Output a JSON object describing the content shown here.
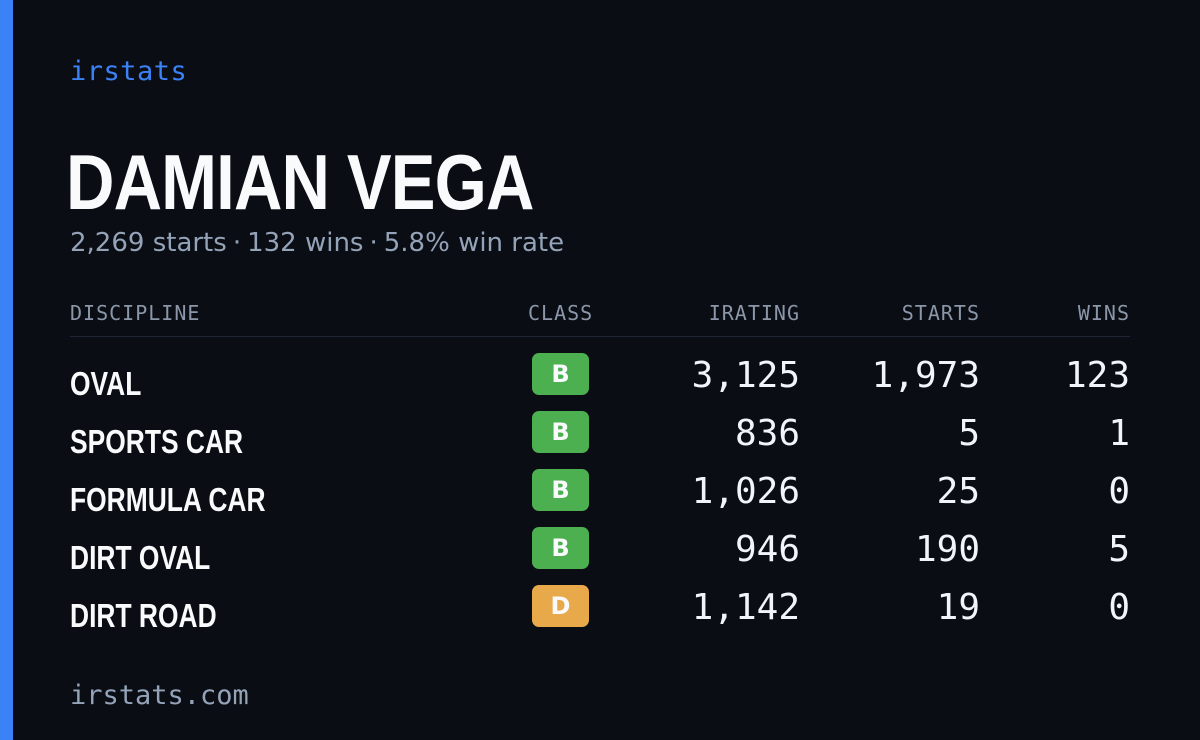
{
  "brand": "irstats",
  "driver": {
    "name": "DAMIAN VEGA",
    "starts_text": "2,269 starts",
    "wins_text": "132 wins",
    "win_rate_text": "5.8% win rate",
    "separator": "·"
  },
  "table": {
    "headers": {
      "discipline": "DISCIPLINE",
      "class": "CLASS",
      "irating": "IRATING",
      "starts": "STARTS",
      "wins": "WINS"
    },
    "rows": [
      {
        "discipline": "OVAL",
        "class": "B",
        "irating": "3,125",
        "starts": "1,973",
        "wins": "123"
      },
      {
        "discipline": "SPORTS CAR",
        "class": "B",
        "irating": "836",
        "starts": "5",
        "wins": "1"
      },
      {
        "discipline": "FORMULA CAR",
        "class": "B",
        "irating": "1,026",
        "starts": "25",
        "wins": "0"
      },
      {
        "discipline": "DIRT OVAL",
        "class": "B",
        "irating": "946",
        "starts": "190",
        "wins": "5"
      },
      {
        "discipline": "DIRT ROAD",
        "class": "D",
        "irating": "1,142",
        "starts": "19",
        "wins": "0"
      }
    ]
  },
  "class_colors": {
    "B": "#4caf50",
    "D": "#e8a94a"
  },
  "colors": {
    "accent": "#3b82f6",
    "background": "#0a0d14"
  },
  "footer": "irstats.com"
}
